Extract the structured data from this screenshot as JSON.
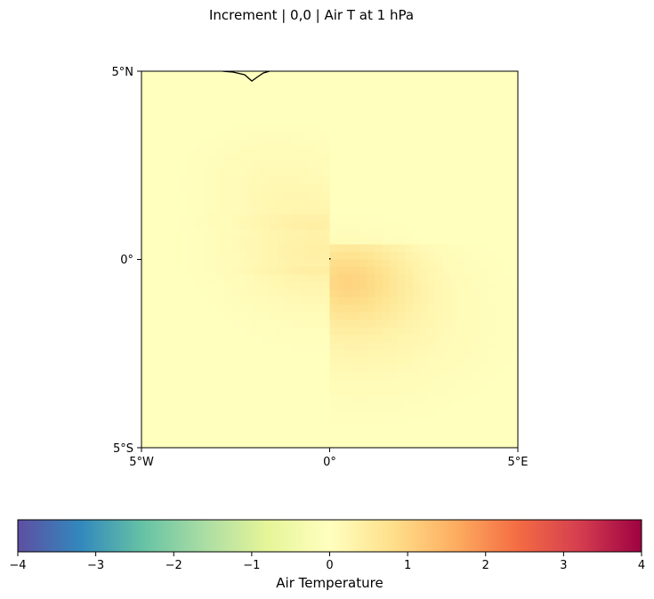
{
  "chart_data": {
    "type": "heatmap",
    "title": "Increment | 0,0 | Air T at 1 hPa",
    "x_ticks": [
      "5°W",
      "0°",
      "5°E"
    ],
    "y_ticks": [
      "5°N",
      "0°",
      "5°S"
    ],
    "x_range": [
      -5,
      5
    ],
    "y_range": [
      -5,
      5
    ],
    "grid": false,
    "field_note_values": {
      "max_increment_near": [
        0.5,
        -0.5
      ],
      "max_value": 0.8
    },
    "colorbar": {
      "label": "Air Temperature",
      "range": [
        -4,
        4
      ],
      "ticks": [
        "−4",
        "−3",
        "−2",
        "−1",
        "0",
        "1",
        "2",
        "3",
        "4"
      ],
      "colormap": "Spectral_r",
      "position": "bottom"
    },
    "colors": {
      "neutral": "#ffffbe",
      "coastline": "#000000"
    }
  }
}
